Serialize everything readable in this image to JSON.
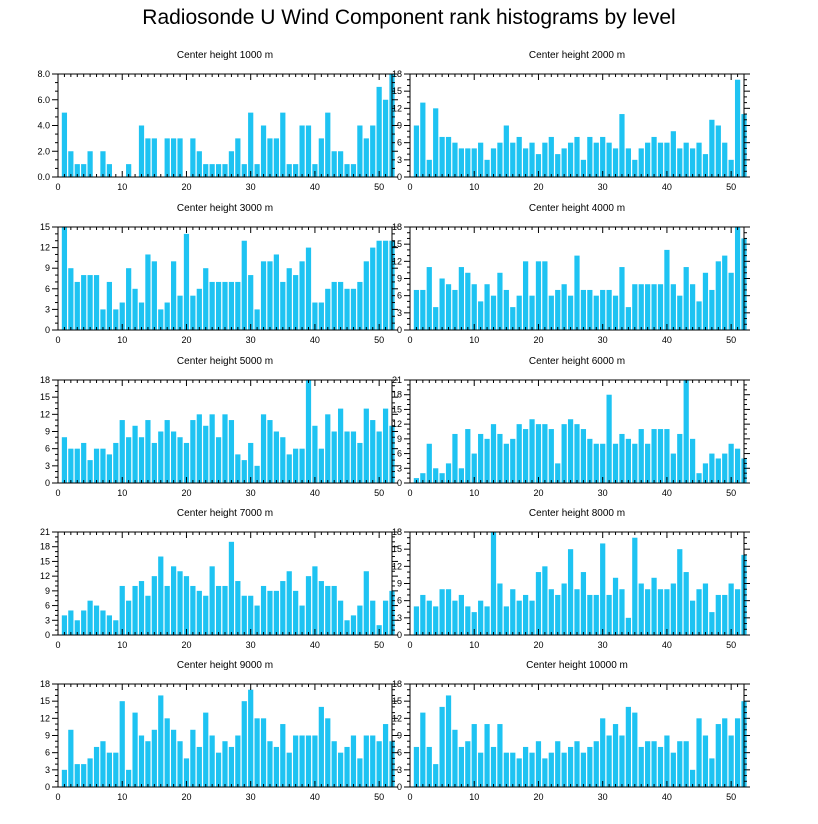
{
  "title": "Radiosonde U Wind Component rank histograms by level",
  "colors": {
    "bar": "#1ec3f2",
    "axis": "#000000",
    "background": "#ffffff"
  },
  "chart_data": [
    {
      "type": "bar",
      "title": "Center height 1000 m",
      "xlim": [
        0,
        52
      ],
      "ylim": [
        0,
        8
      ],
      "xticks": [
        0,
        10,
        20,
        30,
        40,
        50
      ],
      "yticks": [
        0,
        2,
        4,
        6,
        8
      ],
      "ytick_labels": [
        "0.0",
        "2.0",
        "4.0",
        "6.0",
        "8.0"
      ],
      "values": [
        5,
        2,
        1,
        1,
        2,
        0,
        2,
        1,
        0,
        0,
        1,
        0,
        4,
        3,
        3,
        0,
        3,
        3,
        3,
        0,
        3,
        2,
        1,
        1,
        1,
        1,
        2,
        3,
        1,
        5,
        1,
        4,
        3,
        3,
        5,
        1,
        1,
        4,
        4,
        1,
        3,
        5,
        2,
        2,
        1,
        1,
        4,
        3,
        4,
        7,
        6,
        8
      ]
    },
    {
      "type": "bar",
      "title": "Center height 2000 m",
      "xlim": [
        0,
        52
      ],
      "ylim": [
        0,
        18
      ],
      "xticks": [
        0,
        10,
        20,
        30,
        40,
        50
      ],
      "yticks": [
        0,
        3,
        6,
        9,
        12,
        15,
        18
      ],
      "ytick_labels": [
        "0",
        "3",
        "6",
        "9",
        "12",
        "15",
        "18"
      ],
      "values": [
        9,
        13,
        3,
        12,
        7,
        7,
        6,
        5,
        5,
        5,
        6,
        3,
        5,
        6,
        9,
        6,
        7,
        5,
        6,
        4,
        6,
        7,
        4,
        5,
        6,
        7,
        3,
        7,
        6,
        7,
        6,
        5,
        11,
        5,
        3,
        5,
        6,
        7,
        6,
        6,
        8,
        5,
        6,
        5,
        6,
        4,
        10,
        9,
        6,
        3,
        17,
        11
      ]
    },
    {
      "type": "bar",
      "title": "Center height 3000 m",
      "xlim": [
        0,
        52
      ],
      "ylim": [
        0,
        15
      ],
      "xticks": [
        0,
        10,
        20,
        30,
        40,
        50
      ],
      "yticks": [
        0,
        3,
        6,
        9,
        12,
        15
      ],
      "ytick_labels": [
        "0",
        "3",
        "6",
        "9",
        "12",
        "15"
      ],
      "values": [
        15,
        9,
        7,
        8,
        8,
        8,
        3,
        7,
        3,
        4,
        9,
        6,
        4,
        11,
        10,
        3,
        4,
        10,
        5,
        14,
        5,
        6,
        9,
        7,
        7,
        7,
        7,
        7,
        13,
        8,
        3,
        10,
        10,
        11,
        7,
        9,
        8,
        10,
        12,
        4,
        4,
        6,
        7,
        7,
        6,
        6,
        7,
        10,
        12,
        13,
        13,
        13
      ]
    },
    {
      "type": "bar",
      "title": "Center height 4000 m",
      "xlim": [
        0,
        52
      ],
      "ylim": [
        0,
        18
      ],
      "xticks": [
        0,
        10,
        20,
        30,
        40,
        50
      ],
      "yticks": [
        0,
        3,
        6,
        9,
        12,
        15,
        18
      ],
      "ytick_labels": [
        "0",
        "3",
        "6",
        "9",
        "12",
        "15",
        "18"
      ],
      "values": [
        7,
        7,
        11,
        4,
        9,
        8,
        7,
        11,
        10,
        8,
        5,
        8,
        6,
        10,
        7,
        4,
        6,
        12,
        6,
        12,
        12,
        6,
        7,
        8,
        6,
        13,
        7,
        7,
        6,
        7,
        7,
        6,
        11,
        4,
        8,
        8,
        8,
        8,
        8,
        14,
        8,
        6,
        11,
        8,
        5,
        10,
        7,
        12,
        13,
        10,
        18,
        16
      ]
    },
    {
      "type": "bar",
      "title": "Center height 5000 m",
      "xlim": [
        0,
        52
      ],
      "ylim": [
        0,
        18
      ],
      "xticks": [
        0,
        10,
        20,
        30,
        40,
        50
      ],
      "yticks": [
        0,
        3,
        6,
        9,
        12,
        15,
        18
      ],
      "ytick_labels": [
        "0",
        "3",
        "6",
        "9",
        "12",
        "15",
        "18"
      ],
      "values": [
        8,
        6,
        6,
        7,
        4,
        6,
        6,
        5,
        7,
        11,
        8,
        10,
        8,
        11,
        7,
        9,
        11,
        9,
        8,
        7,
        11,
        12,
        10,
        12,
        8,
        12,
        11,
        5,
        4,
        7,
        3,
        12,
        11,
        9,
        8,
        5,
        6,
        6,
        18,
        10,
        6,
        12,
        9,
        13,
        9,
        9,
        7,
        13,
        11,
        9,
        13,
        10
      ]
    },
    {
      "type": "bar",
      "title": "Center height 6000 m",
      "xlim": [
        0,
        52
      ],
      "ylim": [
        0,
        21
      ],
      "xticks": [
        0,
        10,
        20,
        30,
        40,
        50
      ],
      "yticks": [
        0,
        3,
        6,
        9,
        12,
        15,
        18,
        21
      ],
      "ytick_labels": [
        "0",
        "3",
        "6",
        "9",
        "12",
        "15",
        "18",
        "21"
      ],
      "values": [
        1,
        2,
        8,
        3,
        2,
        4,
        10,
        3,
        11,
        6,
        10,
        9,
        12,
        10,
        8,
        9,
        12,
        11,
        13,
        12,
        12,
        11,
        4,
        12,
        13,
        12,
        11,
        9,
        8,
        8,
        18,
        8,
        10,
        9,
        8,
        11,
        8,
        11,
        11,
        11,
        6,
        10,
        21,
        9,
        2,
        4,
        6,
        5,
        6,
        8,
        7,
        5
      ]
    },
    {
      "type": "bar",
      "title": "Center height 7000 m",
      "xlim": [
        0,
        52
      ],
      "ylim": [
        0,
        21
      ],
      "xticks": [
        0,
        10,
        20,
        30,
        40,
        50
      ],
      "yticks": [
        0,
        3,
        6,
        9,
        12,
        15,
        18,
        21
      ],
      "ytick_labels": [
        "0",
        "3",
        "6",
        "9",
        "12",
        "15",
        "18",
        "21"
      ],
      "values": [
        4,
        5,
        3,
        5,
        7,
        6,
        5,
        4,
        3,
        10,
        7,
        10,
        11,
        8,
        12,
        16,
        10,
        14,
        13,
        12,
        10,
        9,
        8,
        14,
        10,
        10,
        19,
        11,
        8,
        8,
        6,
        10,
        9,
        9,
        11,
        13,
        9,
        6,
        12,
        14,
        11,
        10,
        10,
        7,
        3,
        4,
        6,
        13,
        7,
        2,
        7,
        9
      ]
    },
    {
      "type": "bar",
      "title": "Center height 8000 m",
      "xlim": [
        0,
        52
      ],
      "ylim": [
        0,
        18
      ],
      "xticks": [
        0,
        10,
        20,
        30,
        40,
        50
      ],
      "yticks": [
        0,
        3,
        6,
        9,
        12,
        15,
        18
      ],
      "ytick_labels": [
        "0",
        "3",
        "6",
        "9",
        "12",
        "15",
        "18"
      ],
      "values": [
        5,
        7,
        6,
        5,
        8,
        8,
        6,
        7,
        5,
        4,
        6,
        5,
        18,
        9,
        5,
        8,
        6,
        7,
        6,
        11,
        12,
        8,
        7,
        9,
        15,
        8,
        11,
        7,
        7,
        16,
        7,
        10,
        8,
        3,
        17,
        9,
        8,
        10,
        8,
        8,
        9,
        15,
        11,
        6,
        8,
        9,
        4,
        7,
        7,
        9,
        8,
        14
      ]
    },
    {
      "type": "bar",
      "title": "Center height 9000 m",
      "xlim": [
        0,
        52
      ],
      "ylim": [
        0,
        18
      ],
      "xticks": [
        0,
        10,
        20,
        30,
        40,
        50
      ],
      "yticks": [
        0,
        3,
        6,
        9,
        12,
        15,
        18
      ],
      "ytick_labels": [
        "0",
        "3",
        "6",
        "9",
        "12",
        "15",
        "18"
      ],
      "values": [
        3,
        10,
        4,
        4,
        5,
        7,
        8,
        6,
        6,
        15,
        3,
        13,
        9,
        8,
        10,
        16,
        12,
        10,
        8,
        5,
        10,
        7,
        13,
        9,
        6,
        8,
        7,
        9,
        15,
        17,
        12,
        12,
        8,
        7,
        11,
        6,
        9,
        9,
        9,
        9,
        14,
        12,
        8,
        6,
        7,
        9,
        5,
        9,
        9,
        8,
        11,
        8
      ]
    },
    {
      "type": "bar",
      "title": "Center height 10000 m",
      "xlim": [
        0,
        52
      ],
      "ylim": [
        0,
        18
      ],
      "xticks": [
        0,
        10,
        20,
        30,
        40,
        50
      ],
      "yticks": [
        0,
        3,
        6,
        9,
        12,
        15,
        18
      ],
      "ytick_labels": [
        "0",
        "3",
        "6",
        "9",
        "12",
        "15",
        "18"
      ],
      "values": [
        7,
        13,
        7,
        4,
        14,
        16,
        10,
        7,
        8,
        11,
        6,
        11,
        7,
        11,
        6,
        6,
        5,
        7,
        6,
        8,
        5,
        6,
        8,
        6,
        7,
        8,
        6,
        7,
        8,
        12,
        9,
        11,
        9,
        14,
        13,
        7,
        8,
        8,
        7,
        9,
        6,
        8,
        8,
        3,
        12,
        9,
        5,
        11,
        12,
        9,
        12,
        15
      ]
    }
  ]
}
